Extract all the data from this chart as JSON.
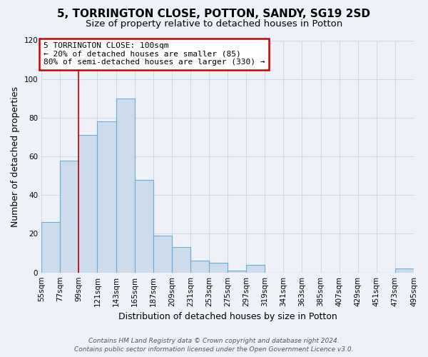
{
  "title": "5, TORRINGTON CLOSE, POTTON, SANDY, SG19 2SD",
  "subtitle": "Size of property relative to detached houses in Potton",
  "xlabel": "Distribution of detached houses by size in Potton",
  "ylabel": "Number of detached properties",
  "bin_edges": [
    55,
    77,
    99,
    121,
    143,
    165,
    187,
    209,
    231,
    253,
    275,
    297,
    319,
    341,
    363,
    385,
    407,
    429,
    451,
    473,
    495
  ],
  "bin_labels": [
    "55sqm",
    "77sqm",
    "99sqm",
    "121sqm",
    "143sqm",
    "165sqm",
    "187sqm",
    "209sqm",
    "231sqm",
    "253sqm",
    "275sqm",
    "297sqm",
    "319sqm",
    "341sqm",
    "363sqm",
    "385sqm",
    "407sqm",
    "429sqm",
    "451sqm",
    "473sqm",
    "495sqm"
  ],
  "counts": [
    26,
    58,
    71,
    78,
    90,
    48,
    19,
    13,
    6,
    5,
    1,
    4,
    0,
    0,
    0,
    0,
    0,
    0,
    0,
    2
  ],
  "bar_color": "#cddcec",
  "bar_edge_color": "#6aacd6",
  "vline_x": 99,
  "vline_color": "#cc0000",
  "annotation_line1": "5 TORRINGTON CLOSE: 100sqm",
  "annotation_line2": "← 20% of detached houses are smaller (85)",
  "annotation_line3": "80% of semi-detached houses are larger (330) →",
  "annotation_box_color": "#ffffff",
  "annotation_box_edge": "#cc0000",
  "ylim": [
    0,
    120
  ],
  "yticks": [
    0,
    20,
    40,
    60,
    80,
    100,
    120
  ],
  "footer_line1": "Contains HM Land Registry data © Crown copyright and database right 2024.",
  "footer_line2": "Contains public sector information licensed under the Open Government Licence v3.0.",
  "bg_color": "#eef2f8",
  "grid_color": "#d0d8e8",
  "title_fontsize": 11,
  "subtitle_fontsize": 9.5,
  "label_fontsize": 9,
  "tick_fontsize": 7.5,
  "footer_fontsize": 6.5
}
